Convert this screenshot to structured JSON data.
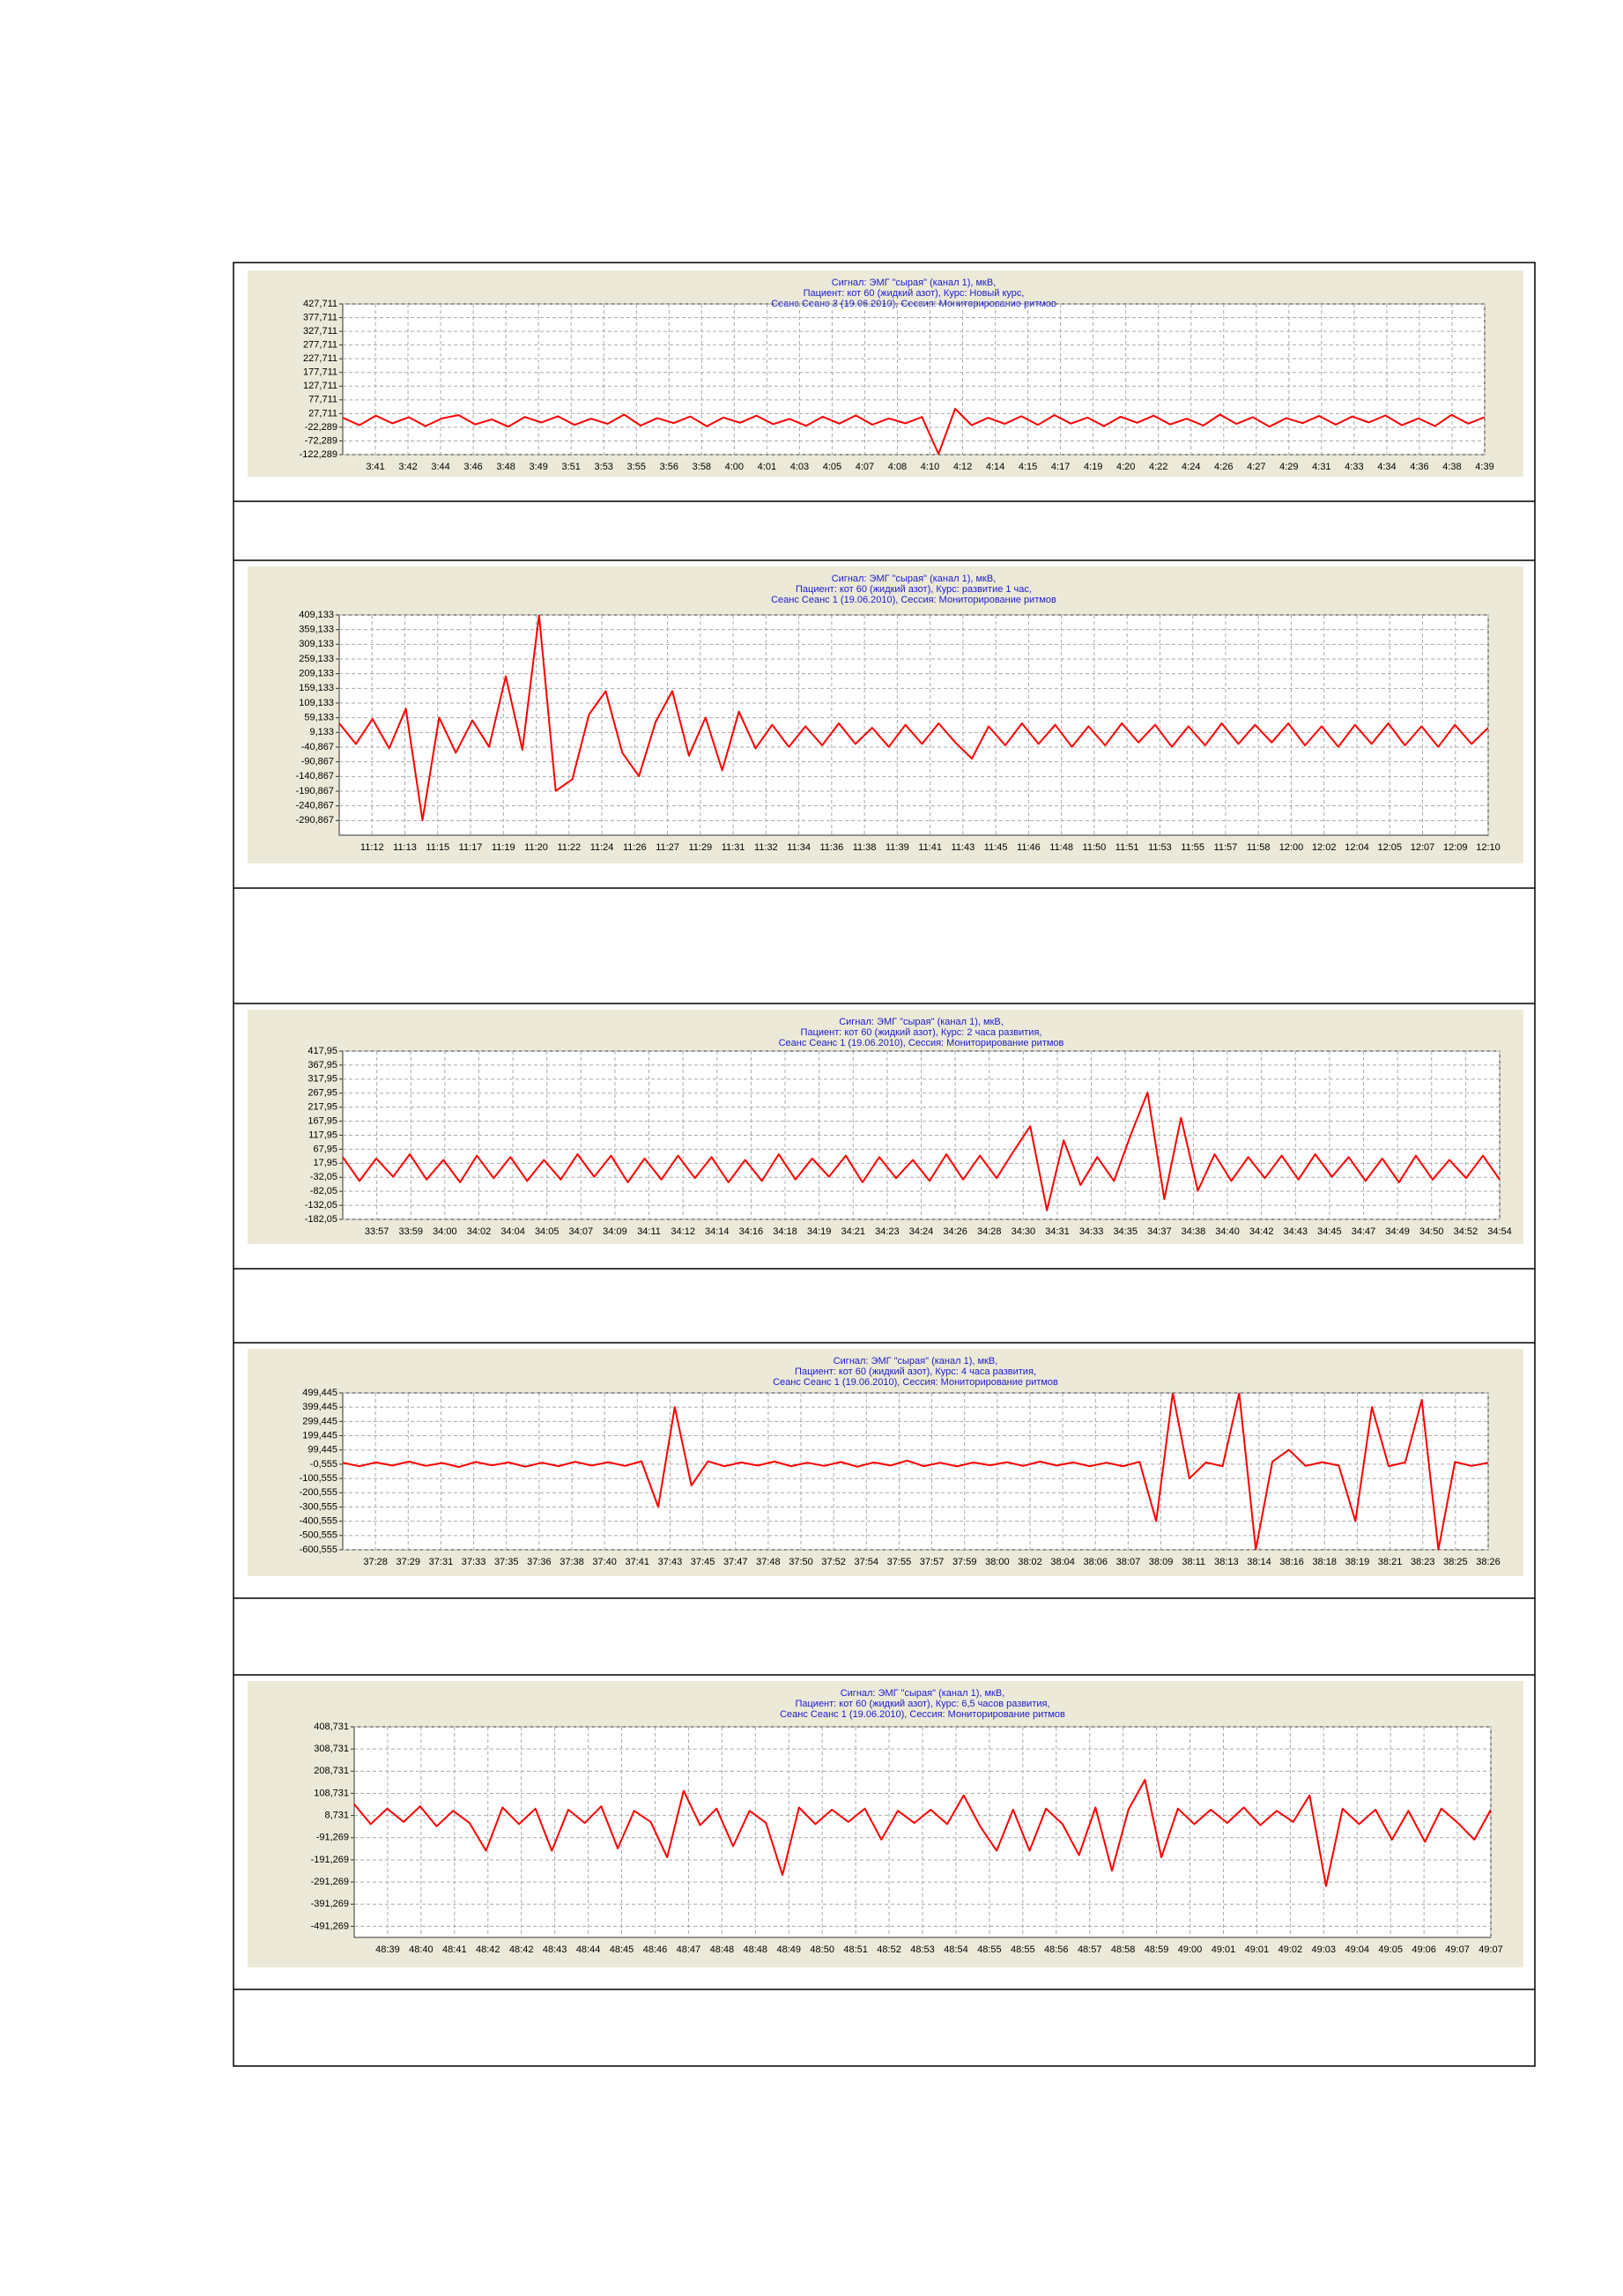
{
  "chart_data": [
    {
      "type": "line",
      "title": [
        "Сигнал: ЭМГ \"сырая\" (канал 1), мкВ,",
        "Пациент: кот 60 (жидкий азот), Курс: Новый курс,",
        "Сеанс Сеанс 3 (19.06.2010), Сессия:    Мониторирование  ритмов"
      ],
      "xticks": [
        "3:41",
        "3:42",
        "3:44",
        "3:46",
        "3:48",
        "3:49",
        "3:51",
        "3:53",
        "3:55",
        "3:56",
        "3:58",
        "4:00",
        "4:01",
        "4:03",
        "4:05",
        "4:07",
        "4:08",
        "4:10",
        "4:12",
        "4:14",
        "4:15",
        "4:17",
        "4:19",
        "4:20",
        "4:22",
        "4:24",
        "4:26",
        "4:27",
        "4:29",
        "4:31",
        "4:33",
        "4:34",
        "4:36",
        "4:38",
        "4:39"
      ],
      "ylim": [
        -122.289,
        427.711
      ],
      "yticks": [
        {
          "value": 427.711,
          "label": "427,711"
        },
        {
          "value": 377.711,
          "label": "377,711"
        },
        {
          "value": 327.711,
          "label": "327,711"
        },
        {
          "value": 277.711,
          "label": "277,711"
        },
        {
          "value": 227.711,
          "label": "227,711"
        },
        {
          "value": 177.711,
          "label": "177,711"
        },
        {
          "value": 127.711,
          "label": "127,711"
        },
        {
          "value": 77.711,
          "label": "77,711"
        },
        {
          "value": 27.711,
          "label": "27,711"
        },
        {
          "value": -22.289,
          "label": "-22,289"
        },
        {
          "value": -72.289,
          "label": "-72,289"
        },
        {
          "value": -122.289,
          "label": "-122,289"
        }
      ],
      "grid": true,
      "color": "#ff0000",
      "values": [
        12,
        -15,
        20,
        -8,
        14,
        -18,
        10,
        22,
        -12,
        6,
        -20,
        15,
        -5,
        18,
        -14,
        9,
        -10,
        24,
        -16,
        11,
        -7,
        17,
        -19,
        13,
        -6,
        20,
        -11,
        8,
        -17,
        16,
        -9,
        21,
        -13,
        10,
        -8,
        15,
        -120,
        45,
        -15,
        12,
        -10,
        18,
        -14,
        22,
        -9,
        13,
        -18,
        16,
        -6,
        20,
        -12,
        9,
        -16,
        24,
        -10,
        14,
        -20,
        11,
        -7,
        19,
        -13,
        17,
        -5,
        21,
        -15,
        10,
        -18,
        23,
        -9,
        14
      ]
    },
    {
      "type": "line",
      "title": [
        "Сигнал: ЭМГ \"сырая\" (канал 1), мкВ,",
        "Пациент: кот 60 (жидкий азот), Курс: развитие 1 час,",
        "Сеанс Сеанс 1 (19.06.2010), Сессия:    Мониторирование  ритмов"
      ],
      "xticks": [
        "11:12",
        "11:13",
        "11:15",
        "11:17",
        "11:19",
        "11:20",
        "11:22",
        "11:24",
        "11:26",
        "11:27",
        "11:29",
        "11:31",
        "11:32",
        "11:34",
        "11:36",
        "11:38",
        "11:39",
        "11:41",
        "11:43",
        "11:45",
        "11:46",
        "11:48",
        "11:50",
        "11:51",
        "11:53",
        "11:55",
        "11:57",
        "11:58",
        "12:00",
        "12:02",
        "12:04",
        "12:05",
        "12:07",
        "12:09",
        "12:10"
      ],
      "ylim": [
        -340.867,
        409.133
      ],
      "yticks": [
        {
          "value": 409.133,
          "label": "409,133"
        },
        {
          "value": 359.133,
          "label": "359,133"
        },
        {
          "value": 309.133,
          "label": "309,133"
        },
        {
          "value": 259.133,
          "label": "259,133"
        },
        {
          "value": 209.133,
          "label": "209,133"
        },
        {
          "value": 159.133,
          "label": "159,133"
        },
        {
          "value": 109.133,
          "label": "109,133"
        },
        {
          "value": 59.133,
          "label": "59,133"
        },
        {
          "value": 9.133,
          "label": "9,133"
        },
        {
          "value": -40.867,
          "label": "-40,867"
        },
        {
          "value": -90.867,
          "label": "-90,867"
        },
        {
          "value": -140.867,
          "label": "-140,867"
        },
        {
          "value": -190.867,
          "label": "-190,867"
        },
        {
          "value": -240.867,
          "label": "-240,867"
        },
        {
          "value": -290.867,
          "label": "-290,867"
        }
      ],
      "grid": true,
      "color": "#ff0000",
      "values": [
        40,
        -30,
        55,
        -45,
        90,
        -290,
        60,
        -60,
        50,
        -40,
        200,
        -50,
        409,
        -190,
        -150,
        70,
        150,
        -60,
        -140,
        45,
        150,
        -70,
        60,
        -120,
        80,
        -45,
        35,
        -40,
        30,
        -35,
        40,
        -30,
        25,
        -40,
        35,
        -30,
        40,
        -25,
        -80,
        30,
        -35,
        40,
        -30,
        35,
        -40,
        30,
        -35,
        40,
        -25,
        35,
        -40,
        30,
        -35,
        40,
        -30,
        35,
        -25,
        40,
        -35,
        30,
        -40,
        35,
        -30,
        40,
        -35,
        30,
        -40,
        35,
        -30,
        25
      ]
    },
    {
      "type": "line",
      "title": [
        "Сигнал: ЭМГ \"сырая\" (канал 1), мкВ,",
        "Пациент: кот 60 (жидкий азот), Курс: 2 часа развития,",
        "Сеанс Сеанс 1 (19.06.2010), Сессия:    Мониторирование  ритмов"
      ],
      "xticks": [
        "33:57",
        "33:59",
        "34:00",
        "34:02",
        "34:04",
        "34:05",
        "34:07",
        "34:09",
        "34:11",
        "34:12",
        "34:14",
        "34:16",
        "34:18",
        "34:19",
        "34:21",
        "34:23",
        "34:24",
        "34:26",
        "34:28",
        "34:30",
        "34:31",
        "34:33",
        "34:35",
        "34:37",
        "34:38",
        "34:40",
        "34:42",
        "34:43",
        "34:45",
        "34:47",
        "34:49",
        "34:50",
        "34:52",
        "34:54"
      ],
      "ylim": [
        -182.05,
        417.95
      ],
      "yticks": [
        {
          "value": 417.95,
          "label": "417,95"
        },
        {
          "value": 367.95,
          "label": "367,95"
        },
        {
          "value": 317.95,
          "label": "317,95"
        },
        {
          "value": 267.95,
          "label": "267,95"
        },
        {
          "value": 217.95,
          "label": "217,95"
        },
        {
          "value": 167.95,
          "label": "167,95"
        },
        {
          "value": 117.95,
          "label": "117,95"
        },
        {
          "value": 67.95,
          "label": "67,95"
        },
        {
          "value": 17.95,
          "label": "17,95"
        },
        {
          "value": -32.05,
          "label": "-32,05"
        },
        {
          "value": -82.05,
          "label": "-82,05"
        },
        {
          "value": -132.05,
          "label": "-132,05"
        },
        {
          "value": -182.05,
          "label": "-182,05"
        }
      ],
      "grid": true,
      "color": "#ff0000",
      "values": [
        40,
        -45,
        35,
        -30,
        50,
        -40,
        30,
        -50,
        45,
        -35,
        40,
        -45,
        30,
        -40,
        50,
        -30,
        45,
        -50,
        35,
        -40,
        45,
        -35,
        40,
        -50,
        30,
        -45,
        50,
        -40,
        35,
        -30,
        45,
        -50,
        40,
        -35,
        30,
        -45,
        50,
        -40,
        45,
        -35,
        60,
        150,
        -150,
        100,
        -60,
        40,
        -45,
        120,
        270,
        -110,
        180,
        -80,
        50,
        -45,
        40,
        -35,
        45,
        -40,
        50,
        -30,
        40,
        -45,
        35,
        -50,
        45,
        -40,
        30,
        -35,
        45,
        -40
      ]
    },
    {
      "type": "line",
      "title": [
        "Сигнал: ЭМГ \"сырая\" (канал 1), мкВ,",
        "Пациент: кот 60 (жидкий азот), Курс: 4 часа развития,",
        "Сеанс Сеанс 1 (19.06.2010), Сессия:    Мониторирование  ритмов"
      ],
      "xticks": [
        "37:28",
        "37:29",
        "37:31",
        "37:33",
        "37:35",
        "37:36",
        "37:38",
        "37:40",
        "37:41",
        "37:43",
        "37:45",
        "37:47",
        "37:48",
        "37:50",
        "37:52",
        "37:54",
        "37:55",
        "37:57",
        "37:59",
        "38:00",
        "38:02",
        "38:04",
        "38:06",
        "38:07",
        "38:09",
        "38:11",
        "38:13",
        "38:14",
        "38:16",
        "38:18",
        "38:19",
        "38:21",
        "38:23",
        "38:25",
        "38:26"
      ],
      "ylim": [
        -600.555,
        499.445
      ],
      "yticks": [
        {
          "value": 499.445,
          "label": "499,445"
        },
        {
          "value": 399.445,
          "label": "399,445"
        },
        {
          "value": 299.445,
          "label": "299,445"
        },
        {
          "value": 199.445,
          "label": "199,445"
        },
        {
          "value": 99.445,
          "label": "99,445"
        },
        {
          "value": -0.555,
          "label": "-0,555"
        },
        {
          "value": -100.555,
          "label": "-100,555"
        },
        {
          "value": -200.555,
          "label": "-200,555"
        },
        {
          "value": -300.555,
          "label": "-300,555"
        },
        {
          "value": -400.555,
          "label": "-400,555"
        },
        {
          "value": -500.555,
          "label": "-500,555"
        },
        {
          "value": -600.555,
          "label": "-600,555"
        }
      ],
      "grid": true,
      "color": "#ff0000",
      "values": [
        10,
        -15,
        12,
        -10,
        18,
        -12,
        8,
        -20,
        15,
        -8,
        12,
        -18,
        10,
        -14,
        16,
        -10,
        14,
        -12,
        20,
        -300,
        400,
        -150,
        20,
        -15,
        12,
        -10,
        18,
        -14,
        10,
        -12,
        15,
        -18,
        12,
        -10,
        25,
        -14,
        10,
        -16,
        12,
        -8,
        14,
        -12,
        18,
        -10,
        12,
        -15,
        10,
        -14,
        16,
        -400,
        499,
        -100,
        12,
        -15,
        499,
        -600,
        18,
        100,
        -12,
        14,
        -10,
        -400,
        400,
        -14,
        12,
        450,
        -600,
        15,
        -12,
        10
      ]
    },
    {
      "type": "line",
      "title": [
        "Сигнал: ЭМГ \"сырая\" (канал 1), мкВ,",
        "Пациент: кот 60 (жидкий азот), Курс: 6,5 часов развития,",
        "Сеанс Сеанс 1 (19.06.2010), Сессия:    Мониторирование  ритмов"
      ],
      "xticks": [
        "48:39",
        "48:40",
        "48:41",
        "48:42",
        "48:42",
        "48:43",
        "48:44",
        "48:45",
        "48:46",
        "48:47",
        "48:48",
        "48:48",
        "48:49",
        "48:50",
        "48:51",
        "48:52",
        "48:53",
        "48:54",
        "48:55",
        "48:55",
        "48:56",
        "48:57",
        "48:58",
        "48:59",
        "49:00",
        "49:01",
        "49:01",
        "49:02",
        "49:03",
        "49:04",
        "49:05",
        "49:06",
        "49:07",
        "49:07"
      ],
      "ylim": [
        -541.269,
        408.731
      ],
      "yticks": [
        {
          "value": 408.731,
          "label": "408,731"
        },
        {
          "value": 308.731,
          "label": "308,731"
        },
        {
          "value": 208.731,
          "label": "208,731"
        },
        {
          "value": 108.731,
          "label": "108,731"
        },
        {
          "value": 8.731,
          "label": "8,731"
        },
        {
          "value": -91.269,
          "label": "-91,269"
        },
        {
          "value": -191.269,
          "label": "-191,269"
        },
        {
          "value": -291.269,
          "label": "-291,269"
        },
        {
          "value": -391.269,
          "label": "-391,269"
        },
        {
          "value": -491.269,
          "label": "-491,269"
        }
      ],
      "grid": true,
      "color": "#ff0000",
      "values": [
        60,
        -30,
        40,
        -20,
        50,
        -40,
        30,
        -25,
        -150,
        45,
        -30,
        40,
        -150,
        35,
        -25,
        50,
        -140,
        30,
        -20,
        -180,
        120,
        -35,
        40,
        -130,
        30,
        -25,
        -260,
        45,
        -30,
        35,
        -20,
        40,
        -100,
        30,
        -25,
        35,
        -30,
        100,
        -40,
        -150,
        35,
        -150,
        40,
        -30,
        -170,
        45,
        -240,
        35,
        170,
        -180,
        40,
        -30,
        35,
        -25,
        45,
        -35,
        30,
        -20,
        100,
        -310,
        40,
        -30,
        35,
        -100,
        30,
        -110,
        40,
        -25,
        -100,
        35
      ]
    }
  ]
}
